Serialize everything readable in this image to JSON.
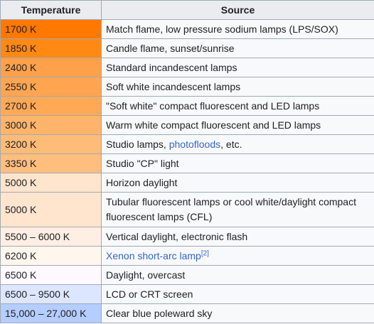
{
  "table": {
    "headers": {
      "temperature": "Temperature",
      "source": "Source"
    },
    "rows": [
      {
        "temperature": "1700 K",
        "color": "#ff7800",
        "source": "Match flame, low pressure sodium lamps (LPS/SOX)"
      },
      {
        "temperature": "1850 K",
        "color": "#ff8912",
        "source": "Candle flame, sunset/sunrise"
      },
      {
        "temperature": "2400 K",
        "color": "#ffa04a",
        "source": "Standard incandescent lamps"
      },
      {
        "temperature": "2550 K",
        "color": "#ffa552",
        "source": "Soft white incandescent lamps"
      },
      {
        "temperature": "2700 K",
        "color": "#ffa957",
        "source": "\"Soft white\" compact fluorescent and LED lamps"
      },
      {
        "temperature": "3000 K",
        "color": "#ffb46b",
        "source": "Warm white compact fluorescent and LED lamps"
      },
      {
        "temperature": "3200 K",
        "color": "#ffbb78",
        "source_before": "Studio lamps, ",
        "source_link": "photofloods",
        "source_after": ", etc."
      },
      {
        "temperature": "3350 K",
        "color": "#ffbe7e",
        "source": "Studio \"CP\" light"
      },
      {
        "temperature": "5000 K",
        "color": "#ffe4ce",
        "source": "Horizon daylight"
      },
      {
        "temperature": "5000 K",
        "color": "#ffe4ce",
        "source": "Tubular fluorescent lamps or cool white/daylight compact fluorescent lamps (CFL)"
      },
      {
        "temperature": "5500 – 6000 K",
        "color": "#ffeee3",
        "source": "Vertical daylight, electronic flash"
      },
      {
        "temperature": "6200 K",
        "color": "#fff6ee",
        "source_link": "Xenon short-arc lamp",
        "source_ref": "[2]"
      },
      {
        "temperature": "6500 K",
        "color": "#fef9ff",
        "source": "Daylight, overcast"
      },
      {
        "temperature": "6500 – 9500 K",
        "color": "#dde6ff",
        "source": "LCD or CRT screen"
      },
      {
        "temperature": "15,000 – 27,000 K",
        "color": "#b5cdff",
        "source": "Clear blue poleward sky"
      }
    ]
  }
}
